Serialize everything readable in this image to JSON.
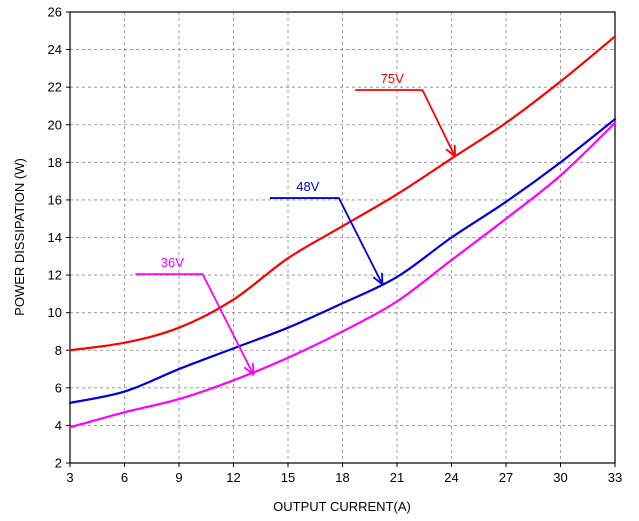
{
  "chart_data": {
    "type": "line",
    "title": "",
    "xlabel": "OUTPUT CURRENT(A)",
    "ylabel": "POWER DISSIPATION (W)",
    "xlim": [
      3,
      33
    ],
    "ylim": [
      2,
      26
    ],
    "xticks": [
      3,
      6,
      9,
      12,
      15,
      18,
      21,
      24,
      27,
      30,
      33
    ],
    "yticks": [
      2,
      4,
      6,
      8,
      10,
      12,
      14,
      16,
      18,
      20,
      22,
      24,
      26
    ],
    "grid": true,
    "grid_style": "dashed",
    "legend": "inline arrow annotations",
    "series": [
      {
        "name": "75V",
        "color": "#ff0000",
        "x": [
          3,
          6,
          9,
          12,
          15,
          18,
          21,
          24,
          27,
          30,
          33
        ],
        "y": [
          8.0,
          8.4,
          9.2,
          10.7,
          12.9,
          14.6,
          16.3,
          18.2,
          20.1,
          22.3,
          24.7
        ]
      },
      {
        "name": "48V",
        "color": "#0000dd",
        "x": [
          3,
          6,
          9,
          12,
          15,
          18,
          21,
          24,
          27,
          30,
          33
        ],
        "y": [
          5.2,
          5.8,
          7.0,
          8.1,
          9.2,
          10.5,
          11.9,
          14.0,
          15.9,
          18.0,
          20.3
        ]
      },
      {
        "name": "36V",
        "color": "#ff00ff",
        "x": [
          3,
          6,
          9,
          12,
          15,
          18,
          21,
          24,
          27,
          30,
          33
        ],
        "y": [
          3.9,
          4.7,
          5.4,
          6.4,
          7.6,
          9.0,
          10.6,
          12.8,
          15.0,
          17.3,
          20.1
        ]
      }
    ],
    "annotations": [
      {
        "text": "75V",
        "color": "#ff0000",
        "line_y": 21.85,
        "line_x_start": 18.7,
        "line_x_end": 22.4,
        "arrow_to": [
          24.2,
          18.3
        ]
      },
      {
        "text": "48V",
        "color": "#0000dd",
        "line_y": 16.1,
        "line_x_start": 14.0,
        "line_x_end": 17.8,
        "arrow_to": [
          20.2,
          11.5
        ]
      },
      {
        "text": "36V",
        "color": "#ff00ff",
        "line_y": 12.05,
        "line_x_start": 6.6,
        "line_x_end": 10.3,
        "arrow_to": [
          13.1,
          6.7
        ]
      }
    ]
  }
}
